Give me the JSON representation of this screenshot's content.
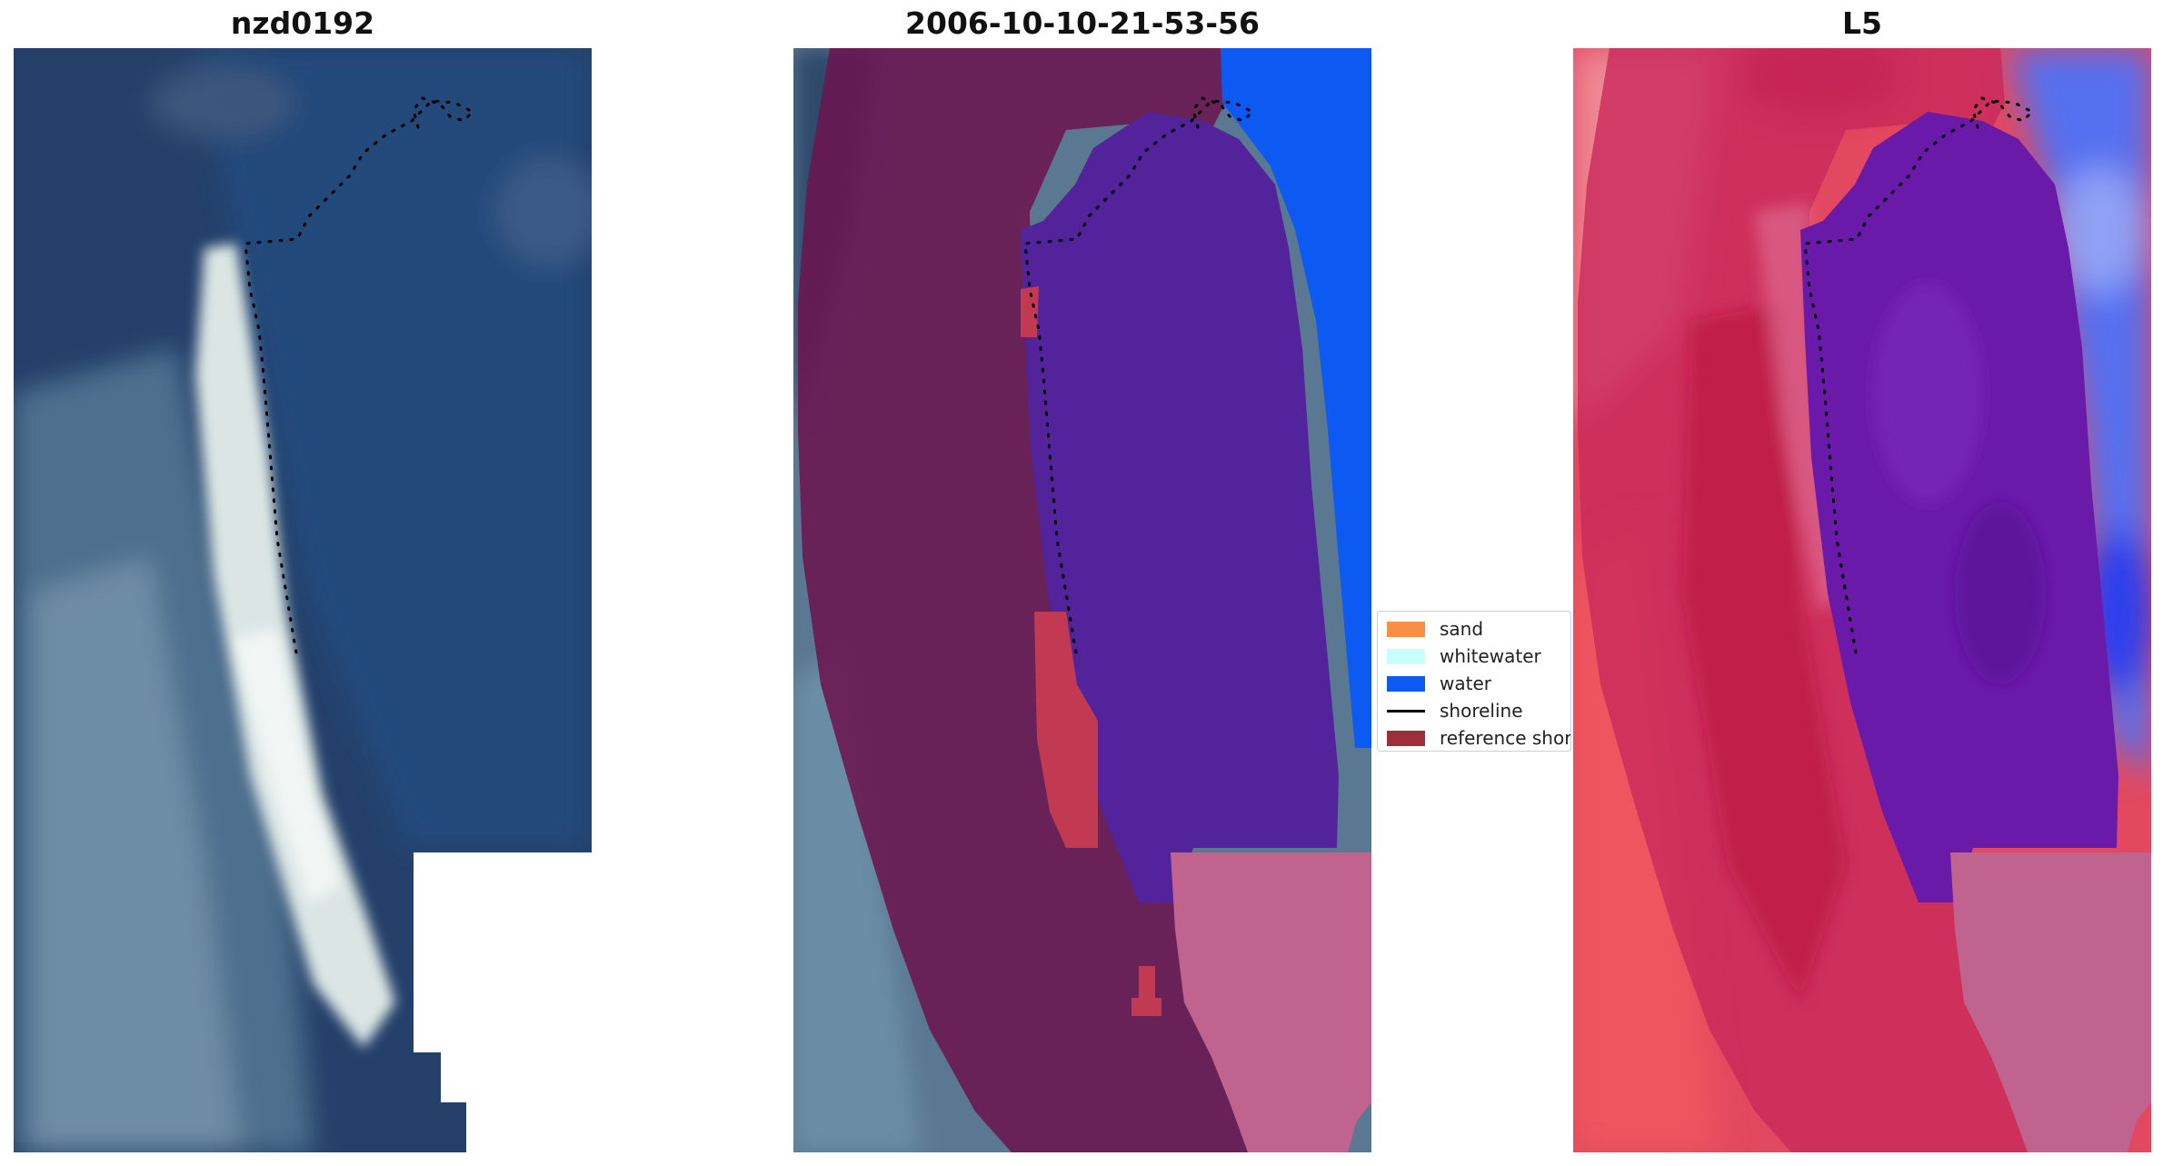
{
  "panels": [
    {
      "title": "nzd0192"
    },
    {
      "title": "2006-10-10-21-53-56"
    },
    {
      "title": "L5"
    }
  ],
  "legend": {
    "items": [
      {
        "label": "sand",
        "color": "#f98f45"
      },
      {
        "label": "whitewater",
        "color": "#c9fffb"
      },
      {
        "label": "water",
        "color": "#0d5af2"
      },
      {
        "label": "shoreline",
        "color": "#000000"
      },
      {
        "label": "reference shoreline",
        "color": "#9b2f3c"
      }
    ]
  },
  "colors": {
    "rgb_water": "#1e3b66",
    "rgb_sand": "#dfe9e6",
    "rgb_land": "#5f7f97",
    "buffer_overlay": "#6a1650",
    "classified_water": "#0d5af2",
    "lagoon": "#52239b",
    "masked_area": "#c0638f",
    "l5_red": "#d8344f",
    "l5_blue": "#4c64f0"
  }
}
